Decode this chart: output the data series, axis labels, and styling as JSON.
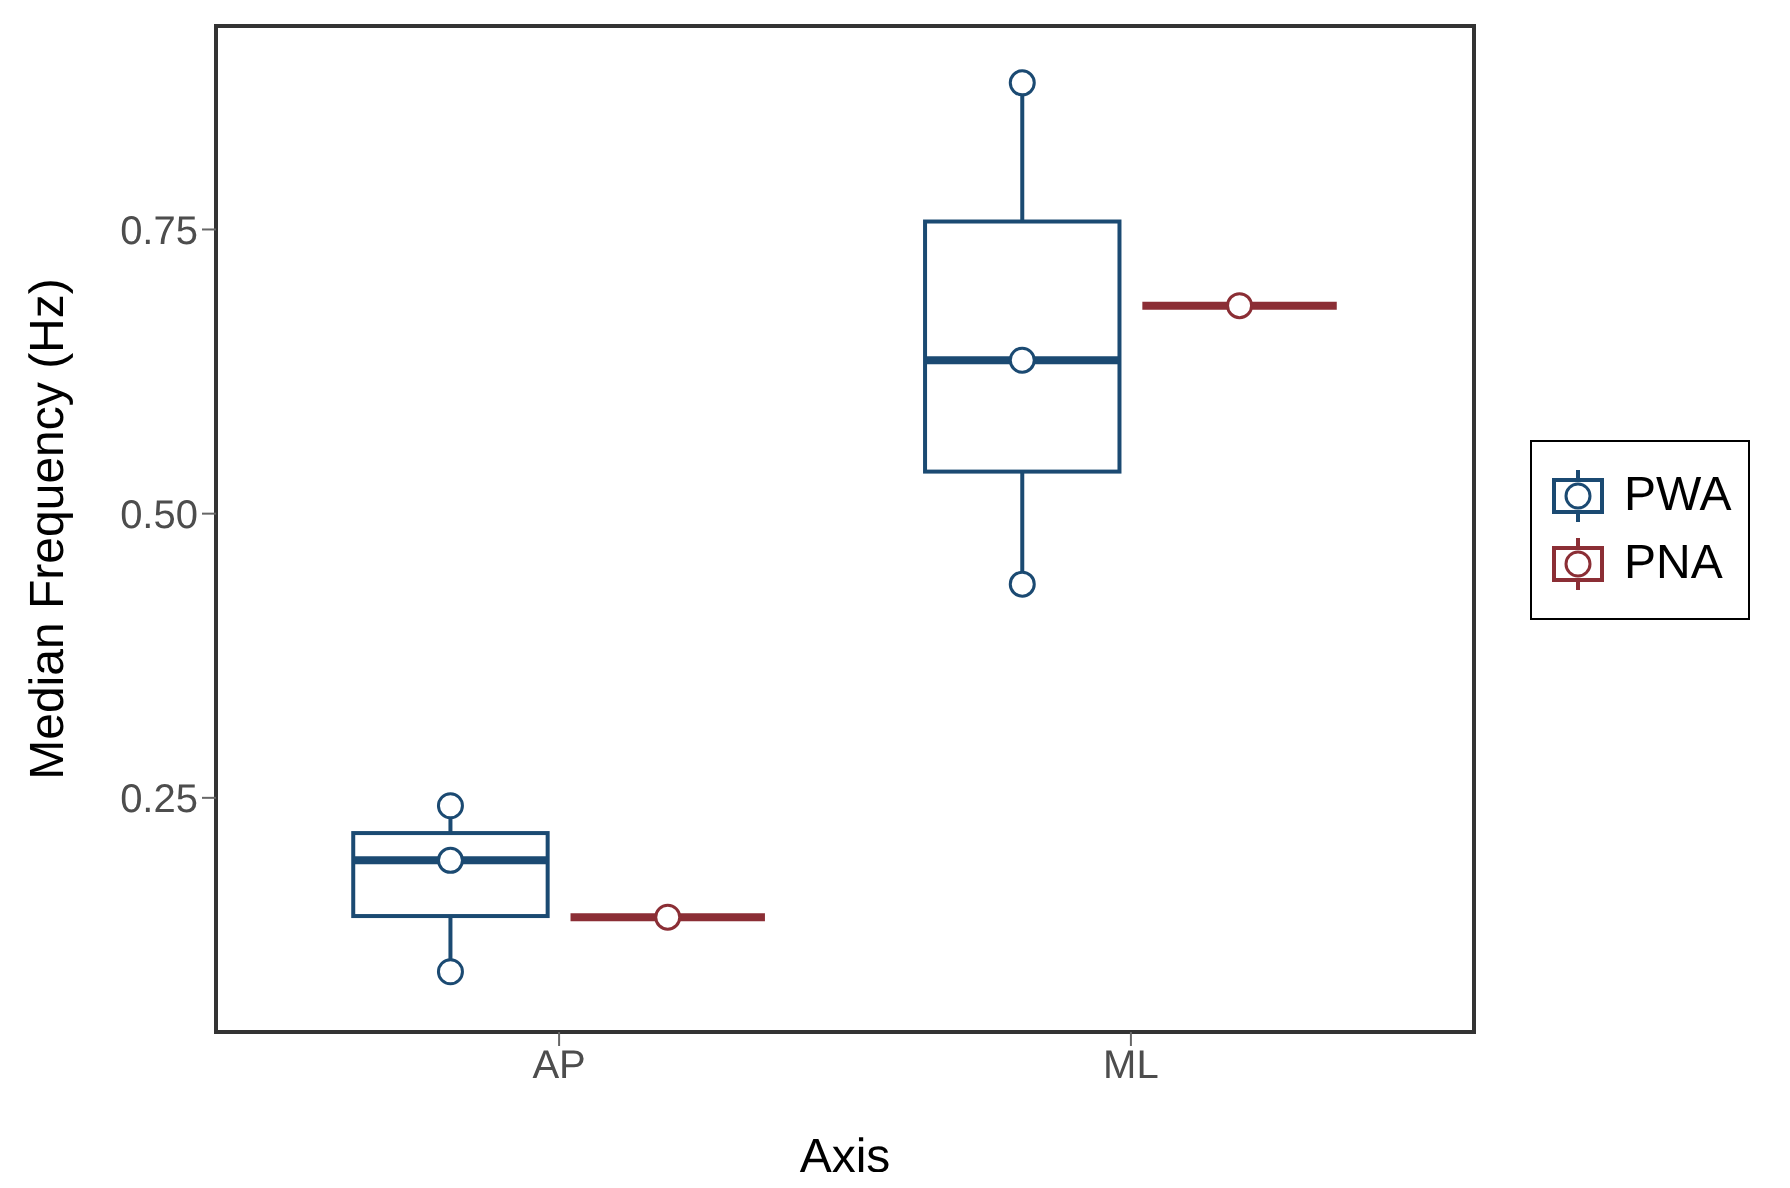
{
  "chart_data": {
    "type": "box",
    "xlabel": "Axis",
    "ylabel": "Median Frequency (Hz)",
    "categories": [
      "AP",
      "ML"
    ],
    "ylim": [
      0.044,
      0.929
    ],
    "yticks": [
      {
        "value": 0.25,
        "label": "0.25"
      },
      {
        "value": 0.5,
        "label": "0.50"
      },
      {
        "value": 0.75,
        "label": "0.75"
      }
    ],
    "legend": "right",
    "marker": "circle",
    "series": [
      {
        "name": "PWA",
        "color": "#1b4a72",
        "boxes": [
          {
            "low": 0.097,
            "q1": 0.146,
            "median": 0.195,
            "q3": 0.219,
            "high": 0.243
          },
          {
            "low": 0.438,
            "q1": 0.537,
            "median": 0.635,
            "q3": 0.757,
            "high": 0.879
          }
        ]
      },
      {
        "name": "PNA",
        "color": "#8b2e35",
        "boxes": [
          {
            "low": 0.145,
            "q1": 0.145,
            "median": 0.145,
            "q3": 0.145,
            "high": 0.145
          },
          {
            "low": 0.683,
            "q1": 0.683,
            "median": 0.683,
            "q3": 0.683,
            "high": 0.683
          }
        ]
      },
      {
        "type": "scatter",
        "color": "#1b4a72",
        "x": [
          "AP",
          "AP",
          "AP",
          "ML",
          "ML",
          "ML"
        ],
        "values": [
          0.243,
          0.195,
          0.097,
          0.879,
          0.635,
          0.438
        ]
      },
      {
        "type": "scatter",
        "color": "#8b2e35",
        "x": [
          "AP",
          "ML"
        ],
        "values": [
          0.145,
          0.683
        ]
      }
    ]
  }
}
